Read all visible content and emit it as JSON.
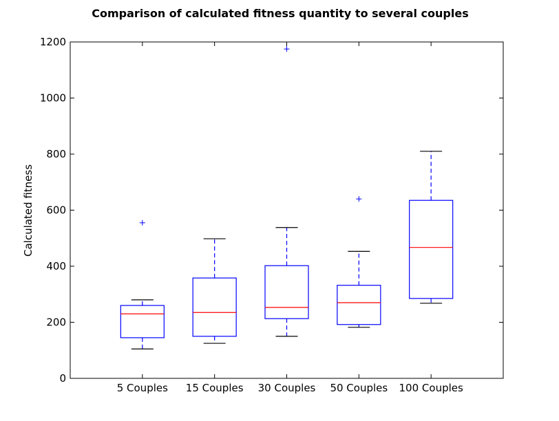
{
  "chart_data": {
    "type": "box",
    "title": "Comparison of calculated fitness quantity to several couples",
    "xlabel": "",
    "ylabel": "Calculated fitness",
    "ylim": [
      0,
      1200
    ],
    "yticks": [
      0,
      200,
      400,
      600,
      800,
      1000,
      1200
    ],
    "grid": false,
    "categories": [
      "5 Couples",
      "15 Couples",
      "30 Couples",
      "50 Couples",
      "100 Couples"
    ],
    "boxes": [
      {
        "category": "5 Couples",
        "whisker_low": 105,
        "q1": 145,
        "median": 230,
        "q3": 260,
        "whisker_high": 280,
        "outliers": [
          555
        ]
      },
      {
        "category": "15 Couples",
        "whisker_low": 125,
        "q1": 150,
        "median": 235,
        "q3": 358,
        "whisker_high": 498,
        "outliers": []
      },
      {
        "category": "30 Couples",
        "whisker_low": 150,
        "q1": 213,
        "median": 253,
        "q3": 402,
        "whisker_high": 538,
        "outliers": [
          1175
        ]
      },
      {
        "category": "50 Couples",
        "whisker_low": 182,
        "q1": 192,
        "median": 270,
        "q3": 332,
        "whisker_high": 453,
        "outliers": [
          640
        ]
      },
      {
        "category": "100 Couples",
        "whisker_low": 268,
        "q1": 285,
        "median": 467,
        "q3": 635,
        "whisker_high": 810,
        "outliers": []
      }
    ],
    "colors": {
      "box": "#0000ff",
      "median": "#ff0000",
      "whisker": "#0000ff",
      "cap": "#000000",
      "outlier": "#0000ff",
      "axes": "#000000"
    }
  }
}
